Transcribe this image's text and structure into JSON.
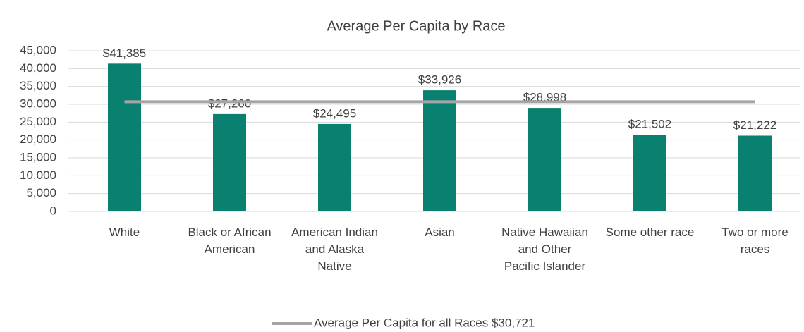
{
  "chart_data": {
    "type": "bar",
    "title": "Average Per Capita by Race",
    "categories": [
      "White",
      "Black or African American",
      "American Indian and Alaska Native",
      "Asian",
      "Native Hawaiian and Other Pacific Islander",
      "Some other race",
      "Two or more races"
    ],
    "values": [
      41385,
      27260,
      24495,
      33926,
      28998,
      21502,
      21222
    ],
    "value_labels": [
      "$41,385",
      "$27,260",
      "$24,495",
      "$33,926",
      "$28,998",
      "$21,502",
      "$21,222"
    ],
    "color": "#0a8070",
    "average_line": {
      "name": "Average Per Capita for all Races $30,721",
      "value": 30721,
      "color": "#a5a5a5"
    },
    "ylim": [
      0,
      45000
    ],
    "yticks": [
      0,
      {
        "value": 5000,
        "label": "5,000"
      },
      {
        "value": 10000,
        "label": "10,000"
      },
      {
        "value": 15000,
        "label": "15,000"
      },
      {
        "value": 20000,
        "label": "20,000"
      },
      {
        "value": 25000,
        "label": "25,000"
      },
      {
        "value": 30000,
        "label": "30,000"
      },
      {
        "value": 35000,
        "label": "35,000"
      },
      {
        "value": 40000,
        "label": "40,000"
      },
      {
        "value": 45000,
        "label": "45,000"
      }
    ],
    "grid": true
  }
}
